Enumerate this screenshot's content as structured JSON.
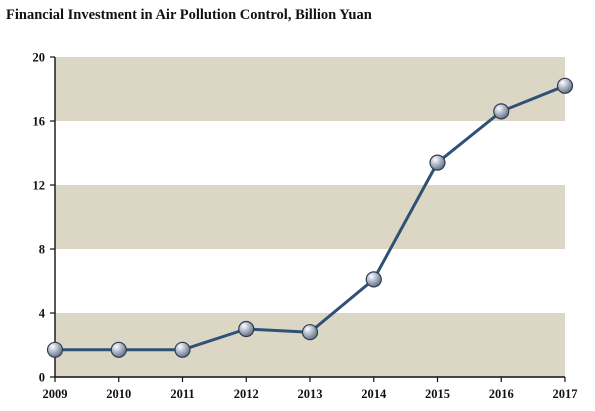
{
  "chart_data": {
    "type": "line",
    "title": "Financial Investment in Air Pollution Control, Billion Yuan",
    "xlabel": "",
    "ylabel": "",
    "x": [
      "2009",
      "2010",
      "2011",
      "2012",
      "2013",
      "2014",
      "2015",
      "2016",
      "2017"
    ],
    "series": [
      {
        "values": [
          1.7,
          1.7,
          1.7,
          3.0,
          2.8,
          6.1,
          13.4,
          16.6,
          18.2
        ]
      }
    ],
    "ylim": [
      0,
      20
    ],
    "yticks": [
      "0",
      "4",
      "8",
      "12",
      "16",
      "20"
    ],
    "grid": "alternating horizontal bands",
    "legend": "none",
    "colors": {
      "band": "#dcd7c4",
      "line": "#2f5176",
      "marker": "#8794a6",
      "axis": "#111111"
    }
  }
}
